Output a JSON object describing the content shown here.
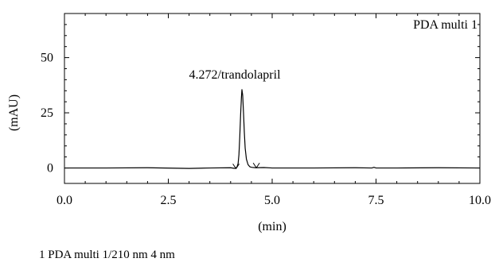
{
  "chart_data": {
    "type": "line",
    "title": "",
    "xlabel": "(min)",
    "ylabel": "(mAU)",
    "xlim": [
      0,
      10
    ],
    "ylim": [
      -7,
      70
    ],
    "xticks": [
      0.0,
      2.5,
      5.0,
      7.5,
      10.0
    ],
    "xtick_labels": [
      "0.0",
      "2.5",
      "5.0",
      "7.5",
      "10.0"
    ],
    "yticks": [
      0,
      25,
      50
    ],
    "ytick_labels": [
      "0",
      "25",
      "50"
    ],
    "grid": false,
    "legend_placement": "top-right",
    "series": [
      {
        "name": "PDA multi 1",
        "x": [
          0,
          1.0,
          2.0,
          3.0,
          3.5,
          4.0,
          4.1,
          4.15,
          4.18,
          4.2,
          4.22,
          4.24,
          4.26,
          4.272,
          4.29,
          4.31,
          4.33,
          4.35,
          4.38,
          4.42,
          4.46,
          4.5,
          4.6,
          4.8,
          5.0,
          6.0,
          7.0,
          7.4,
          7.45,
          7.5,
          8.0,
          9.0,
          10.0
        ],
        "y": [
          0,
          0,
          0.1,
          -0.2,
          0,
          0.1,
          -0.2,
          0.3,
          2.0,
          6.0,
          14.0,
          24.0,
          32.0,
          35.5,
          33.0,
          25.0,
          16.0,
          9.0,
          4.0,
          1.5,
          0.6,
          0.3,
          0.1,
          0.2,
          0,
          0,
          0.1,
          0,
          0.3,
          0,
          0,
          0.1,
          0
        ]
      }
    ],
    "annotations": [
      {
        "text": "4.272/trandolapril",
        "x": 4.272,
        "y": 35.5
      }
    ],
    "integration_marks": [
      {
        "x": 4.13,
        "y": -0.3
      },
      {
        "x": 4.62,
        "y": 0.1
      }
    ],
    "footer": "1 PDA multi 1/210 nm 4 nm"
  }
}
